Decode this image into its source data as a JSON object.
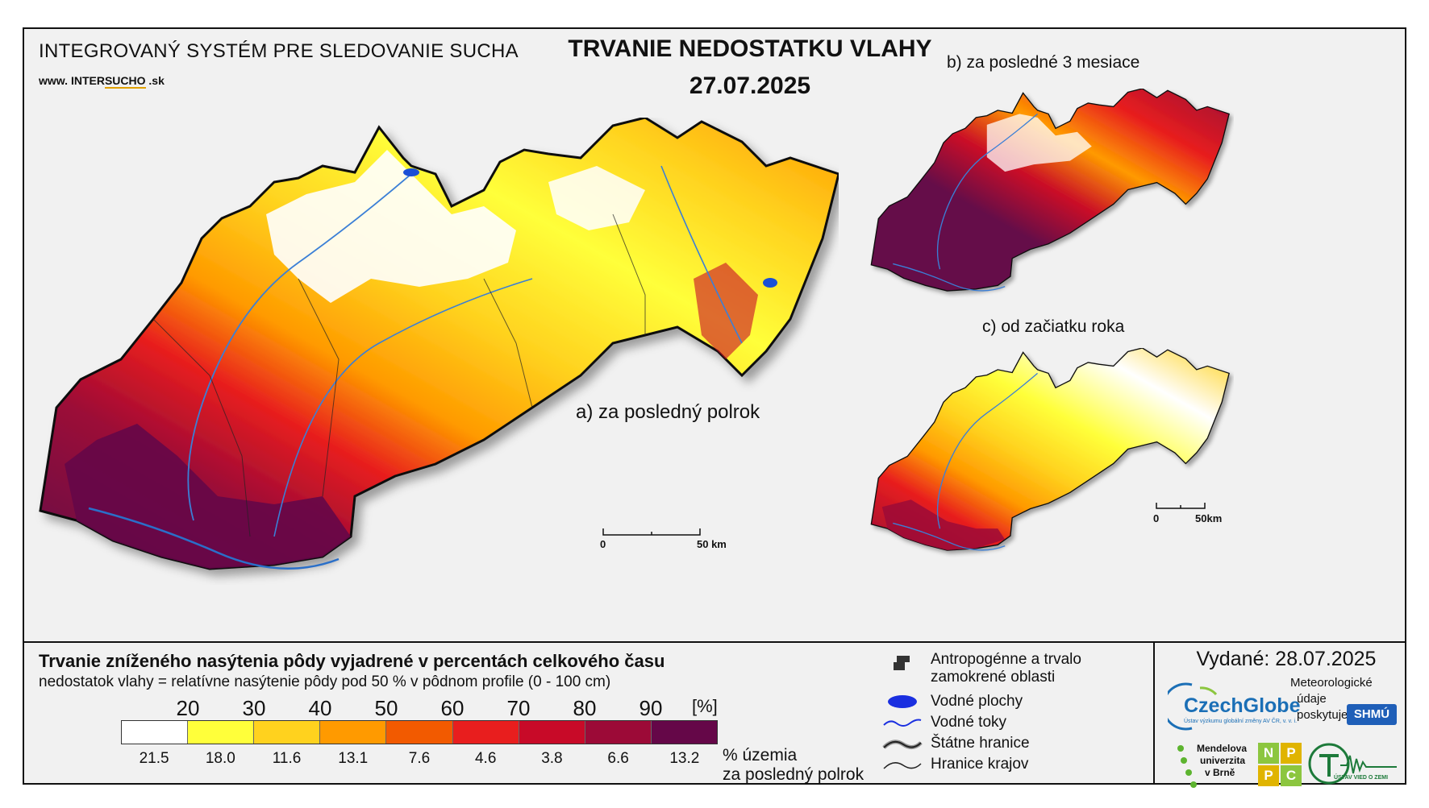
{
  "header": {
    "system_title": "INTEGROVANÝ SYSTÉM PRE SLEDOVANIE SUCHA",
    "site_prefix": "www. ",
    "site_brand_a": "INTER",
    "site_brand_b": "SUCHO",
    "site_suffix": " .sk",
    "title": "TRVANIE NEDOSTATKU VLAHY",
    "date": "27.07.2025"
  },
  "panels": {
    "a_label": "a) za posledný polrok",
    "b_label": "b) za posledné 3 mesiace",
    "c_label": "c) od začiatku roka"
  },
  "scale_bars": {
    "main": {
      "start": "0",
      "end": "50 km"
    },
    "small": {
      "start": "0",
      "end": "50km"
    }
  },
  "legend": {
    "title": "Trvanie zníženého nasýtenia pôdy vyjadrené v percentách celkového času",
    "subtitle": "nedostatok vlahy = relatívne nasýtenie pôdy pod 50 % v pôdnom profile (0 - 100 cm)",
    "ticks": [
      "20",
      "30",
      "40",
      "50",
      "60",
      "70",
      "80",
      "90"
    ],
    "unit": "[%]",
    "colors": [
      "#ffffff",
      "#ffff3a",
      "#ffd21e",
      "#ff9a00",
      "#f25a00",
      "#e81e1e",
      "#c80a28",
      "#9c0a37",
      "#650748"
    ],
    "area_percentages": [
      "21.5",
      "18.0",
      "11.6",
      "13.1",
      "7.6",
      "4.6",
      "3.8",
      "6.6",
      "13.2"
    ],
    "area_note_line1": "% územia",
    "area_note_line2": "za posledný polrok"
  },
  "map_legend": {
    "anthropogenic_line1": "Antropogénne a trvalo",
    "anthropogenic_line2": "zamokrené oblasti",
    "water_bodies": "Vodné plochy",
    "streams": "Vodné toky",
    "state_borders": "Štátne hranice",
    "region_borders": "Hranice krajov"
  },
  "credits": {
    "issued": "Vydané: 28.07.2025",
    "czechglobe": "CzechGlobe",
    "czechglobe_small": "Ústav výzkumu globální změny AV ČR, v. v. i.",
    "meteo_line1": "Meteorologické",
    "meteo_line2": "údaje",
    "meteo_line3": "poskytuje:",
    "shmu": "SHMÚ",
    "mendel_line1": "Mendelova",
    "mendel_line2": "univerzita",
    "mendel_line3": "v Brně",
    "nppc": [
      "N",
      "P",
      "P",
      "C"
    ],
    "uvz": "ÚSTAV VIED O ZEMI"
  }
}
